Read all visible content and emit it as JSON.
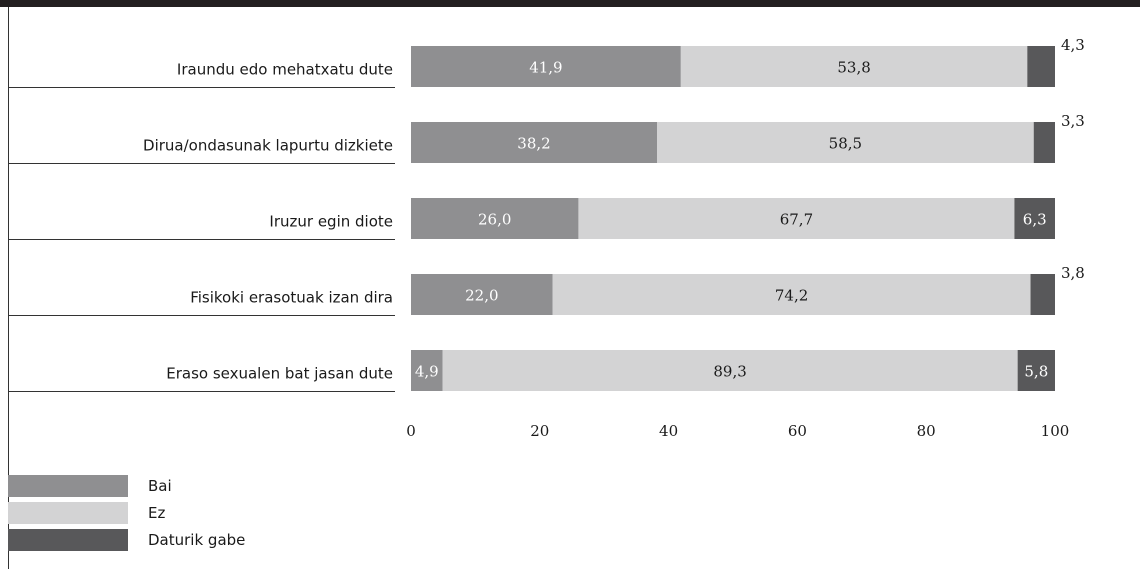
{
  "chart_data": {
    "type": "bar",
    "orientation": "horizontal",
    "stacked": true,
    "categories": [
      "Iraundu edo mehatxatu dute",
      "Dirua/ondasunak lapurtu dizkiete",
      "Iruzur egin diote",
      "Fisikoki erasotuak izan dira",
      "Eraso sexualen bat jasan dute"
    ],
    "series": [
      {
        "name": "Bai",
        "color": "#8f8f91",
        "values": [
          41.9,
          38.2,
          26.0,
          22.0,
          4.9
        ],
        "labels": [
          "41,9",
          "38,2",
          "26,0",
          "22,0",
          "4,9"
        ]
      },
      {
        "name": "Ez",
        "color": "#d3d3d4",
        "values": [
          53.8,
          58.5,
          67.7,
          74.2,
          89.3
        ],
        "labels": [
          "53,8",
          "58,5",
          "67,7",
          "74,2",
          "89,3"
        ]
      },
      {
        "name": "Daturik gabe",
        "color": "#58585a",
        "values": [
          4.3,
          3.3,
          6.3,
          3.8,
          5.8
        ],
        "labels": [
          "4,3",
          "3,3",
          "6,3",
          "3,8",
          "5,8"
        ]
      }
    ],
    "xlim": [
      0,
      100
    ],
    "xticks": [
      "0",
      "20",
      "40",
      "60",
      "80",
      "100"
    ],
    "legend": "bottom-left",
    "grid": false
  }
}
